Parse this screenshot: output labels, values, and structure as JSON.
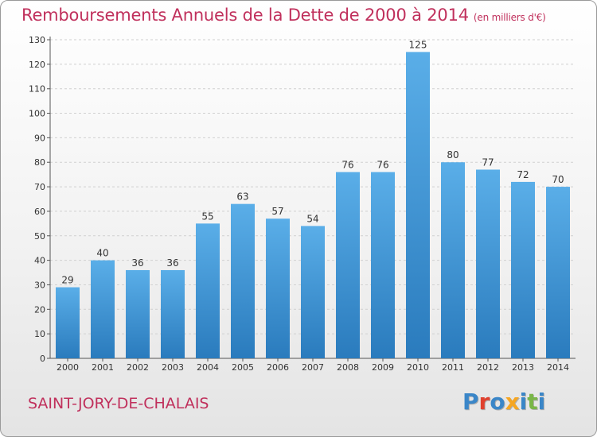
{
  "header": {
    "title": "Remboursements Annuels de la Dette de 2000 à 2014",
    "unit": "(en milliers d'€)"
  },
  "footer": {
    "commune": "SAINT-JORY-DE-CHALAIS",
    "logo": {
      "letters": [
        {
          "ch": "P",
          "color": "#3a86c8"
        },
        {
          "ch": "r",
          "color": "#e0412e"
        },
        {
          "ch": "o",
          "color": "#3a86c8"
        },
        {
          "ch": "x",
          "color": "#f5a623"
        },
        {
          "ch": "i",
          "color": "#3a86c8"
        },
        {
          "ch": "t",
          "color": "#7ab648"
        },
        {
          "ch": "i",
          "color": "#3a86c8"
        }
      ]
    }
  },
  "chart_data": {
    "type": "bar",
    "title": "Remboursements Annuels de la Dette de 2000 à 2014",
    "categories": [
      "2000",
      "2001",
      "2002",
      "2003",
      "2004",
      "2005",
      "2006",
      "2007",
      "2008",
      "2009",
      "2010",
      "2011",
      "2012",
      "2013",
      "2014"
    ],
    "values": [
      29,
      40,
      36,
      36,
      55,
      63,
      57,
      54,
      76,
      76,
      125,
      80,
      77,
      72,
      70
    ],
    "ylim": [
      0,
      130
    ],
    "yticks": [
      0,
      10,
      20,
      30,
      40,
      50,
      60,
      70,
      80,
      90,
      100,
      110,
      120,
      130
    ],
    "grid": true,
    "bar_color_top": "#5aaee8",
    "bar_color_bottom": "#2a7bbd",
    "xlabel": "",
    "ylabel": ""
  }
}
